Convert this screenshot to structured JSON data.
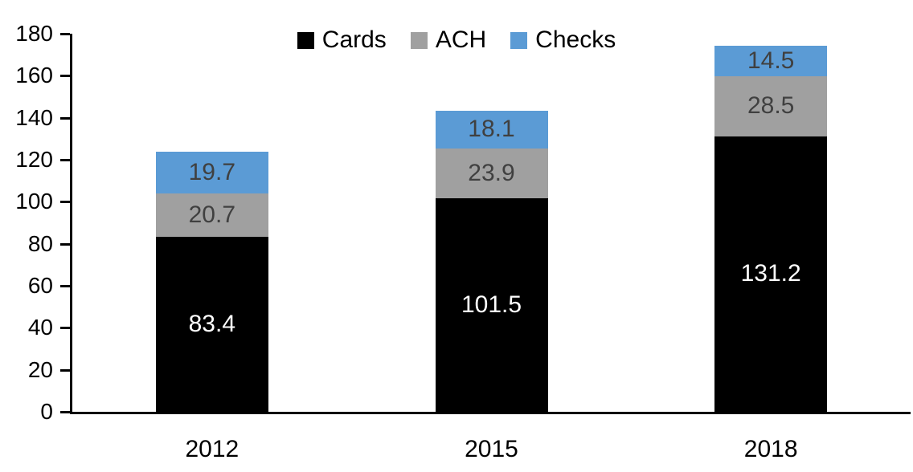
{
  "chart_data": {
    "type": "bar",
    "stacked": true,
    "title": "",
    "xlabel": "",
    "ylabel": "",
    "categories": [
      "2012",
      "2015",
      "2018"
    ],
    "series": [
      {
        "name": "Cards",
        "color": "#000000",
        "label_color": "#ffffff",
        "values": [
          83.4,
          101.5,
          131.2
        ]
      },
      {
        "name": "ACH",
        "color": "#A0A0A0",
        "label_color": "#404040",
        "values": [
          20.7,
          23.9,
          28.5
        ]
      },
      {
        "name": "Checks",
        "color": "#5B9BD5",
        "label_color": "#404040",
        "values": [
          19.7,
          18.1,
          14.5
        ]
      }
    ],
    "ylim": [
      0,
      180
    ],
    "ytick_step": 20,
    "ytick_labels": [
      "0",
      "20",
      "40",
      "60",
      "80",
      "100",
      "120",
      "140",
      "160",
      "180"
    ],
    "grid": false,
    "legend_position": "top-center",
    "axis_color": "#000000",
    "background_color": "#ffffff"
  }
}
